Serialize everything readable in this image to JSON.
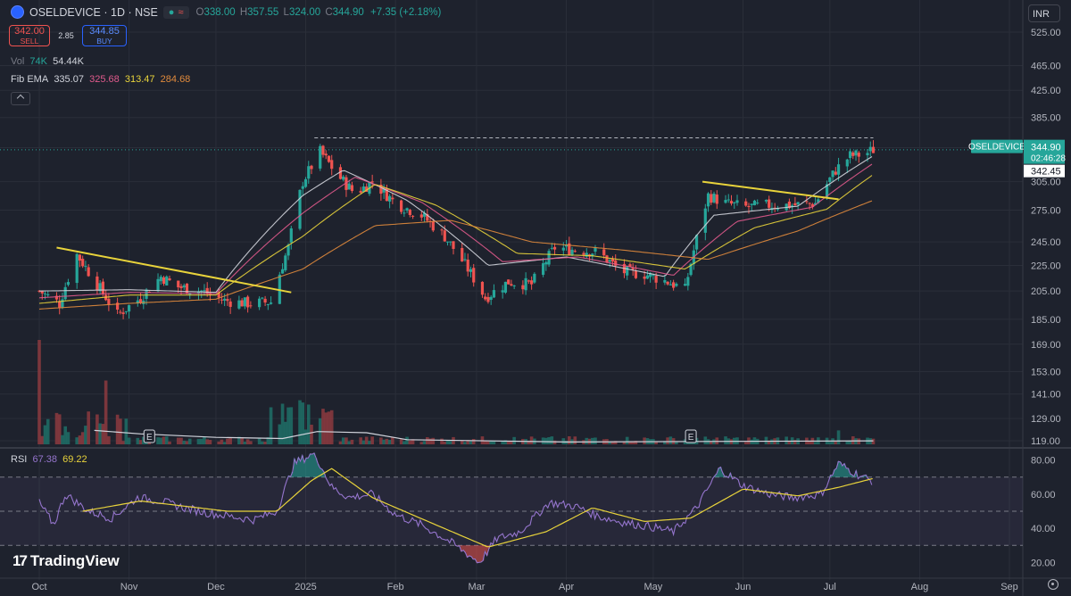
{
  "header": {
    "symbol": "OSELDEVICE · 1D · NSE",
    "open_label": "O",
    "open": "338.00",
    "high_label": "H",
    "high": "357.55",
    "low_label": "L",
    "low": "324.00",
    "close_label": "C",
    "close": "344.90",
    "change": "+7.35 (+2.18%)"
  },
  "trade": {
    "sell_price": "342.00",
    "sell_label": "SELL",
    "spread": "2.85",
    "buy_price": "344.85",
    "buy_label": "BUY"
  },
  "volume": {
    "label": "Vol",
    "value_a": "74K",
    "value_b": "54.44K"
  },
  "ema": {
    "label": "Fib EMA",
    "v1": "335.07",
    "v2": "325.68",
    "v3": "313.47",
    "v4": "284.68"
  },
  "currency": "INR",
  "rsi_legend": {
    "label": "RSI",
    "v1": "67.38",
    "v2": "69.22"
  },
  "brand": "TradingView",
  "price_tag": {
    "symbol": "OSELDEVICE",
    "price": "344.90",
    "countdown": "02:46:28",
    "last": "342.45"
  },
  "earnings_marker": "E",
  "colors": {
    "up": "#26a69a",
    "down": "#ef5350",
    "trendline": "#e8d33b",
    "rsi": "#9575cd",
    "background": "#1e222d"
  },
  "chart_data": [
    {
      "type": "candlestick",
      "price_axis_ticks": [
        525,
        465,
        425,
        385,
        345,
        305,
        275,
        245,
        225,
        205,
        185,
        169,
        153,
        141,
        129,
        119
      ],
      "price_axis_labels": [
        "525.00",
        "465.00",
        "425.00",
        "385.00",
        "345.00",
        "305.00",
        "275.00",
        "245.00",
        "225.00",
        "205.00",
        "185.00",
        "169.00",
        "153.00",
        "141.00",
        "129.00",
        "119.00"
      ],
      "price_scale": "log",
      "x_labels": [
        "Oct",
        "Nov",
        "Dec",
        "2025",
        "Feb",
        "Mar",
        "Apr",
        "May",
        "Jun",
        "Jul",
        "Aug",
        "Sep"
      ],
      "close_path": [
        [
          "2024-10-01",
          205
        ],
        [
          "2024-10-08",
          196
        ],
        [
          "2024-10-14",
          234
        ],
        [
          "2024-10-20",
          213
        ],
        [
          "2024-10-28",
          188
        ],
        [
          "2024-11-05",
          200
        ],
        [
          "2024-11-12",
          216
        ],
        [
          "2024-11-18",
          208
        ],
        [
          "2024-11-26",
          205
        ],
        [
          "2024-12-04",
          198
        ],
        [
          "2024-12-12",
          196
        ],
        [
          "2024-12-20",
          197
        ],
        [
          "2024-12-26",
          240
        ],
        [
          "2024-12-31",
          305
        ],
        [
          "2025-01-06",
          340
        ],
        [
          "2025-01-12",
          312
        ],
        [
          "2025-01-18",
          292
        ],
        [
          "2025-01-24",
          305
        ],
        [
          "2025-02-01",
          282
        ],
        [
          "2025-02-10",
          270
        ],
        [
          "2025-02-18",
          250
        ],
        [
          "2025-02-26",
          222
        ],
        [
          "2025-03-04",
          200
        ],
        [
          "2025-03-12",
          212
        ],
        [
          "2025-03-20",
          210
        ],
        [
          "2025-03-28",
          240
        ],
        [
          "2025-04-05",
          238
        ],
        [
          "2025-04-12",
          236
        ],
        [
          "2025-04-20",
          220
        ],
        [
          "2025-04-28",
          218
        ],
        [
          "2025-05-06",
          212
        ],
        [
          "2025-05-12",
          206
        ],
        [
          "2025-05-20",
          290
        ],
        [
          "2025-05-26",
          282
        ],
        [
          "2025-06-02",
          278
        ],
        [
          "2025-06-10",
          280
        ],
        [
          "2025-06-18",
          280
        ],
        [
          "2025-06-26",
          282
        ],
        [
          "2025-07-03",
          318
        ],
        [
          "2025-07-08",
          335
        ],
        [
          "2025-07-13",
          337
        ],
        [
          "2025-07-16",
          342.45
        ]
      ],
      "ema_series": [
        {
          "name": "EMA 335.07",
          "color": "#d1d4dc",
          "points": [
            [
              "2024-10-01",
              205
            ],
            [
              "2024-11-01",
              206
            ],
            [
              "2024-12-01",
              204
            ],
            [
              "2024-12-31",
              290
            ],
            [
              "2025-01-14",
              318
            ],
            [
              "2025-02-05",
              285
            ],
            [
              "2025-03-05",
              225
            ],
            [
              "2025-04-01",
              232
            ],
            [
              "2025-05-05",
              216
            ],
            [
              "2025-05-22",
              270
            ],
            [
              "2025-06-20",
              279
            ],
            [
              "2025-07-16",
              335
            ]
          ]
        },
        {
          "name": "EMA 325.68",
          "color": "#e05a8c",
          "points": [
            [
              "2024-10-01",
              200
            ],
            [
              "2024-11-01",
              204
            ],
            [
              "2024-12-01",
              203
            ],
            [
              "2024-12-31",
              272
            ],
            [
              "2025-01-18",
              310
            ],
            [
              "2025-02-10",
              283
            ],
            [
              "2025-03-10",
              228
            ],
            [
              "2025-04-05",
              232
            ],
            [
              "2025-05-08",
              217
            ],
            [
              "2025-05-30",
              264
            ],
            [
              "2025-06-25",
              278
            ],
            [
              "2025-07-16",
              326
            ]
          ]
        },
        {
          "name": "EMA 313.47",
          "color": "#e8d33b",
          "points": [
            [
              "2024-10-01",
              196
            ],
            [
              "2024-11-01",
              202
            ],
            [
              "2024-12-01",
              202
            ],
            [
              "2024-12-31",
              250
            ],
            [
              "2025-01-25",
              302
            ],
            [
              "2025-02-15",
              280
            ],
            [
              "2025-03-15",
              235
            ],
            [
              "2025-04-10",
              233
            ],
            [
              "2025-05-12",
              222
            ],
            [
              "2025-06-05",
              258
            ],
            [
              "2025-06-30",
              276
            ],
            [
              "2025-07-16",
              313
            ]
          ]
        },
        {
          "name": "EMA 284.68",
          "color": "#e08a3c",
          "points": [
            [
              "2024-10-01",
              192
            ],
            [
              "2024-11-01",
              196
            ],
            [
              "2024-12-01",
              199
            ],
            [
              "2024-12-31",
              222
            ],
            [
              "2025-01-25",
              260
            ],
            [
              "2025-02-20",
              265
            ],
            [
              "2025-03-20",
              245
            ],
            [
              "2025-04-20",
              238
            ],
            [
              "2025-05-20",
              230
            ],
            [
              "2025-06-20",
              255
            ],
            [
              "2025-07-16",
              285
            ]
          ]
        }
      ],
      "trendlines": [
        {
          "from": [
            "2024-10-07",
            240
          ],
          "to": [
            "2024-12-27",
            204
          ]
        },
        {
          "from": [
            "2025-05-18",
            305
          ],
          "to": [
            "2025-07-04",
            286
          ]
        }
      ],
      "reference_line": {
        "value": 357.55,
        "from": "2025-01-04",
        "to": "2025-07-16"
      }
    },
    {
      "type": "bar",
      "name": "Volume",
      "volume_ma_label": "",
      "earnings_dates": [
        "2024-11-08",
        "2025-05-14"
      ]
    },
    {
      "type": "line",
      "name": "RSI",
      "ylim": [
        15,
        85
      ],
      "levels": [
        70,
        50,
        30
      ],
      "y_axis_ticks": [
        80,
        60,
        40,
        20
      ],
      "y_axis_labels": [
        "80.00",
        "60.00",
        "40.00",
        "20.00"
      ],
      "rsi": [
        [
          "2024-10-01",
          55
        ],
        [
          "2024-10-06",
          42
        ],
        [
          "2024-10-10",
          60
        ],
        [
          "2024-10-18",
          50
        ],
        [
          "2024-10-26",
          46
        ],
        [
          "2024-11-04",
          58
        ],
        [
          "2024-11-12",
          56
        ],
        [
          "2024-11-20",
          52
        ],
        [
          "2024-11-28",
          49
        ],
        [
          "2024-12-06",
          47
        ],
        [
          "2024-12-14",
          45
        ],
        [
          "2024-12-22",
          50
        ],
        [
          "2024-12-28",
          78
        ],
        [
          "2025-01-04",
          84
        ],
        [
          "2025-01-10",
          64
        ],
        [
          "2025-01-16",
          58
        ],
        [
          "2025-01-24",
          60
        ],
        [
          "2025-02-01",
          48
        ],
        [
          "2025-02-10",
          42
        ],
        [
          "2025-02-20",
          32
        ],
        [
          "2025-03-02",
          20
        ],
        [
          "2025-03-08",
          34
        ],
        [
          "2025-03-16",
          38
        ],
        [
          "2025-03-26",
          55
        ],
        [
          "2025-04-04",
          53
        ],
        [
          "2025-04-12",
          47
        ],
        [
          "2025-04-22",
          43
        ],
        [
          "2025-04-30",
          41
        ],
        [
          "2025-05-08",
          38
        ],
        [
          "2025-05-16",
          52
        ],
        [
          "2025-05-24",
          75
        ],
        [
          "2025-06-01",
          65
        ],
        [
          "2025-06-10",
          60
        ],
        [
          "2025-06-18",
          58
        ],
        [
          "2025-06-28",
          60
        ],
        [
          "2025-07-04",
          78
        ],
        [
          "2025-07-10",
          72
        ],
        [
          "2025-07-16",
          67.38
        ]
      ],
      "rsi_ma": [
        [
          "2024-10-16",
          50
        ],
        [
          "2024-11-05",
          56
        ],
        [
          "2024-12-05",
          50
        ],
        [
          "2024-12-22",
          50
        ],
        [
          "2025-01-03",
          68
        ],
        [
          "2025-01-10",
          75
        ],
        [
          "2025-01-24",
          58
        ],
        [
          "2025-02-15",
          42
        ],
        [
          "2025-03-05",
          29
        ],
        [
          "2025-03-25",
          38
        ],
        [
          "2025-04-10",
          52
        ],
        [
          "2025-04-28",
          44
        ],
        [
          "2025-05-14",
          46
        ],
        [
          "2025-06-01",
          63
        ],
        [
          "2025-06-20",
          59
        ],
        [
          "2025-07-04",
          64
        ],
        [
          "2025-07-16",
          69.22
        ]
      ]
    }
  ]
}
